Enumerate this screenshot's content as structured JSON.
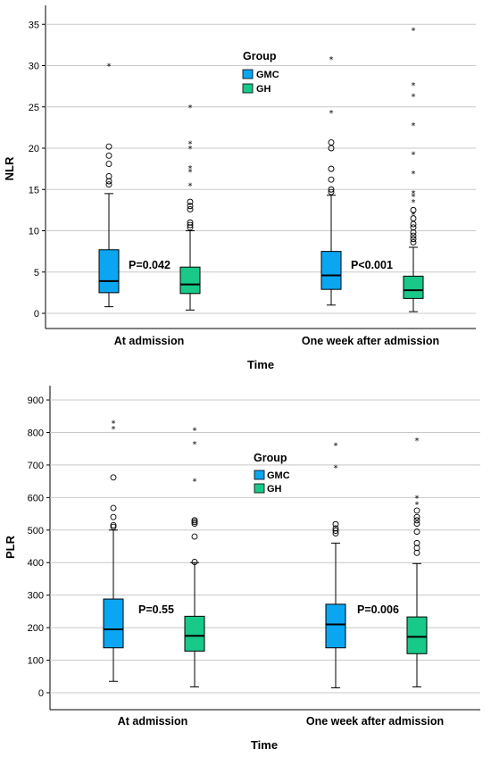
{
  "chart_data": [
    {
      "type": "box",
      "title": "",
      "ylabel": "NLR",
      "xlabel": "Time",
      "ylim": [
        -2,
        36.5
      ],
      "yticks": [
        0,
        5,
        10,
        15,
        20,
        25,
        30,
        35
      ],
      "categories": [
        "At admission",
        "One week after admission"
      ],
      "legend": {
        "title": "Group",
        "position": "top-center"
      },
      "series": [
        {
          "name": "GMC",
          "color": "#0aa6f2"
        },
        {
          "name": "GH",
          "color": "#19c989"
        }
      ],
      "boxes": [
        {
          "category": "At admission",
          "group": "GMC",
          "whisker_low": 0.8,
          "q1": 2.5,
          "median": 3.9,
          "q3": 7.7,
          "whisker_high": 14.5,
          "outliers": [
            15.6,
            16.0,
            16.6,
            18.1,
            19.1,
            20.2
          ],
          "extremes": [
            30.0
          ]
        },
        {
          "category": "At admission",
          "group": "GH",
          "whisker_low": 0.4,
          "q1": 2.4,
          "median": 3.5,
          "q3": 5.6,
          "whisker_high": 10.0,
          "outliers": [
            10.4,
            10.7,
            11.0,
            12.6,
            13.0,
            13.5
          ],
          "extremes": [
            15.5,
            17.2,
            17.6,
            20.0,
            20.6,
            25.0
          ]
        },
        {
          "category": "One week after admission",
          "group": "GMC",
          "whisker_low": 1.0,
          "q1": 2.9,
          "median": 4.6,
          "q3": 7.5,
          "whisker_high": 14.3,
          "outliers": [
            14.7,
            15.0,
            16.2,
            17.5,
            20.0,
            20.7
          ],
          "extremes": [
            24.3,
            30.8
          ]
        },
        {
          "category": "One week after admission",
          "group": "GH",
          "whisker_low": 0.2,
          "q1": 1.8,
          "median": 2.8,
          "q3": 4.5,
          "whisker_high": 8.0,
          "outliers": [
            8.6,
            9.0,
            9.4,
            9.8,
            10.4,
            10.8,
            11.5,
            12.5
          ],
          "extremes": [
            12.0,
            13.5,
            14.2,
            14.6,
            17.0,
            19.3,
            22.8,
            26.3,
            27.7,
            34.3
          ]
        }
      ],
      "annotations": [
        {
          "text": "P=0.042",
          "category": "At admission"
        },
        {
          "text": "P<0.001",
          "category": "One week after admission"
        }
      ]
    },
    {
      "type": "box",
      "title": "",
      "ylabel": "PLR",
      "xlabel": "Time",
      "ylim": [
        -50,
        940
      ],
      "yticks": [
        0,
        100,
        200,
        300,
        400,
        500,
        600,
        700,
        800,
        900
      ],
      "categories": [
        "At admission",
        "One week after admission"
      ],
      "legend": {
        "title": "Group",
        "position": "top-center"
      },
      "series": [
        {
          "name": "GMC",
          "color": "#0aa6f2"
        },
        {
          "name": "GH",
          "color": "#19c989"
        }
      ],
      "boxes": [
        {
          "category": "At admission",
          "group": "GMC",
          "whisker_low": 35,
          "q1": 138,
          "median": 195,
          "q3": 288,
          "whisker_high": 500,
          "outliers": [
            510,
            515,
            540,
            568,
            662
          ],
          "extremes": [
            812,
            830
          ]
        },
        {
          "category": "At admission",
          "group": "GH",
          "whisker_low": 18,
          "q1": 128,
          "median": 175,
          "q3": 235,
          "whisker_high": 400,
          "outliers": [
            402,
            480,
            520,
            525,
            530
          ],
          "extremes": [
            652,
            765,
            808
          ]
        },
        {
          "category": "One week after admission",
          "group": "GMC",
          "whisker_low": 15,
          "q1": 138,
          "median": 210,
          "q3": 272,
          "whisker_high": 460,
          "outliers": [
            490,
            498,
            505,
            518
          ],
          "extremes": [
            693,
            762
          ]
        },
        {
          "category": "One week after admission",
          "group": "GH",
          "whisker_low": 18,
          "q1": 120,
          "median": 172,
          "q3": 233,
          "whisker_high": 397,
          "outliers": [
            430,
            445,
            460,
            495,
            520,
            530,
            540,
            560
          ],
          "extremes": [
            580,
            600,
            776
          ]
        }
      ],
      "annotations": [
        {
          "text": "P=0.55",
          "category": "At admission"
        },
        {
          "text": "P=0.006",
          "category": "One week after admission"
        }
      ]
    }
  ]
}
